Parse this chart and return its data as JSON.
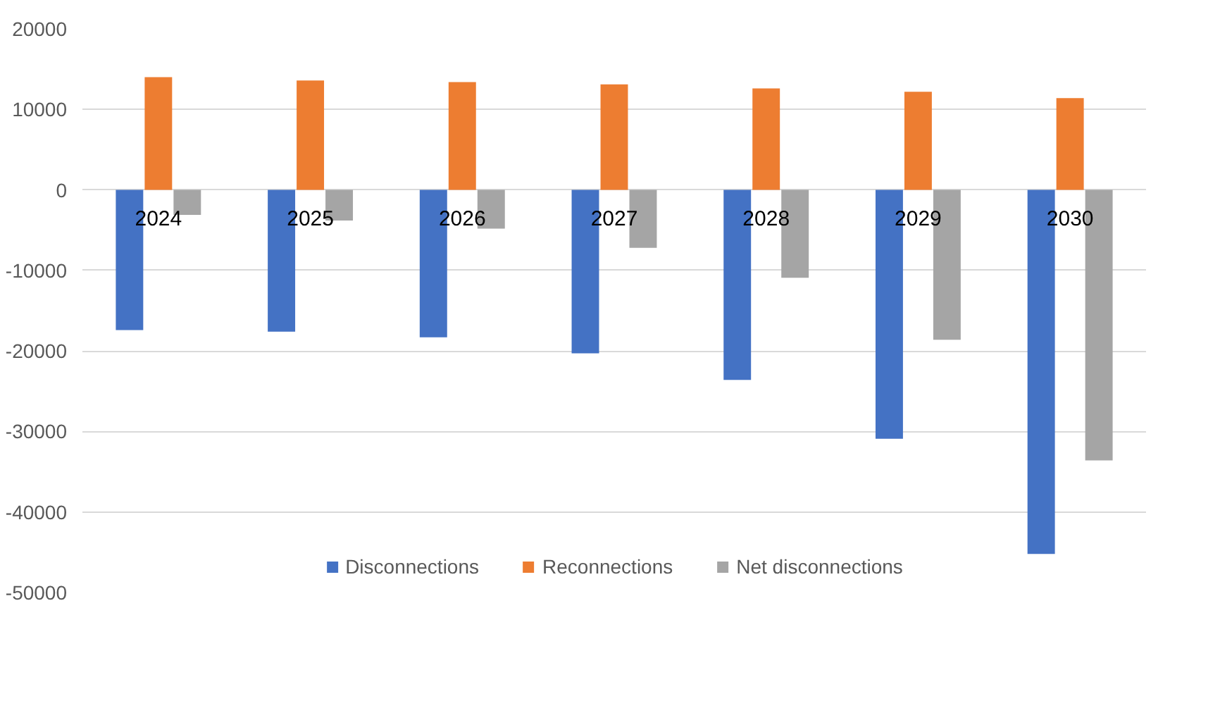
{
  "chart_data": {
    "type": "bar",
    "categories": [
      "2024",
      "2025",
      "2026",
      "2027",
      "2028",
      "2029",
      "2030"
    ],
    "series": [
      {
        "name": "Disconnections",
        "color": "#4472c4",
        "values": [
          -17400,
          -17600,
          -18300,
          -20300,
          -23600,
          -30900,
          -45200
        ]
      },
      {
        "name": "Reconnections",
        "color": "#ed7d31",
        "values": [
          14000,
          13600,
          13400,
          13100,
          12600,
          12200,
          11400
        ]
      },
      {
        "name": "Net disconnections",
        "color": "#a5a5a5",
        "values": [
          -3100,
          -3800,
          -4800,
          -7200,
          -10900,
          -18600,
          -33600
        ]
      }
    ],
    "ylim": [
      -50000,
      20000
    ],
    "yticks": [
      -50000,
      -40000,
      -30000,
      -20000,
      -10000,
      0,
      10000,
      20000
    ],
    "grid": "y",
    "legend": "bottom"
  }
}
